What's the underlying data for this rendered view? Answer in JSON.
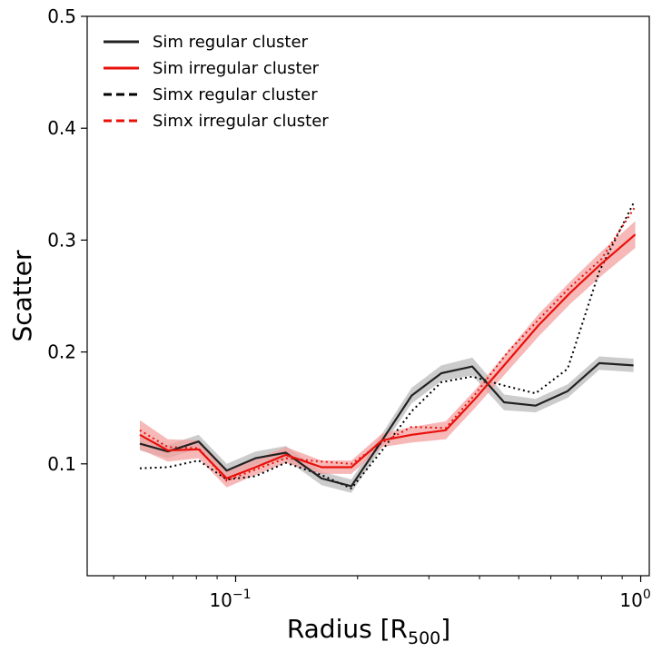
{
  "chart_data": {
    "type": "line",
    "xlabel_main": "Radius [R",
    "xlabel_sub": "500",
    "xlabel_close": "]",
    "ylabel": "Scatter",
    "xscale": "log",
    "xlim": [
      0.043,
      1.05
    ],
    "ylim": [
      0.0,
      0.5
    ],
    "x_ticks": [
      {
        "value": 0.1,
        "base": "10",
        "exp": "−1"
      },
      {
        "value": 1.0,
        "base": "10",
        "exp": "0"
      }
    ],
    "y_ticks": [
      "0.1",
      "0.2",
      "0.3",
      "0.4",
      "0.5"
    ],
    "legend_position": "upper-left",
    "grid": false,
    "series": [
      {
        "name": "Sim regular cluster",
        "color": "#222222",
        "linestyle": "solid",
        "band_color": "#bbbbbb",
        "x": [
          0.058,
          0.068,
          0.081,
          0.095,
          0.112,
          0.133,
          0.163,
          0.193,
          0.23,
          0.272,
          0.322,
          0.384,
          0.46,
          0.55,
          0.66,
          0.79,
          0.96
        ],
        "y": [
          0.118,
          0.111,
          0.12,
          0.094,
          0.105,
          0.11,
          0.087,
          0.08,
          0.121,
          0.161,
          0.181,
          0.187,
          0.155,
          0.152,
          0.165,
          0.19,
          0.188
        ],
        "err": [
          0.006,
          0.006,
          0.006,
          0.006,
          0.006,
          0.006,
          0.006,
          0.006,
          0.006,
          0.007,
          0.007,
          0.008,
          0.007,
          0.006,
          0.006,
          0.006,
          0.006
        ]
      },
      {
        "name": "Sim irregular cluster",
        "color": "#e8100a",
        "linestyle": "solid",
        "band_color": "#f4a0a0",
        "x": [
          0.058,
          0.068,
          0.081,
          0.095,
          0.112,
          0.133,
          0.163,
          0.193,
          0.23,
          0.272,
          0.33,
          0.39,
          0.47,
          0.56,
          0.67,
          0.8,
          0.97
        ],
        "y": [
          0.126,
          0.112,
          0.113,
          0.087,
          0.097,
          0.108,
          0.097,
          0.097,
          0.121,
          0.126,
          0.13,
          0.158,
          0.192,
          0.224,
          0.253,
          0.279,
          0.305
        ],
        "err": [
          0.013,
          0.01,
          0.008,
          0.008,
          0.007,
          0.007,
          0.006,
          0.006,
          0.006,
          0.007,
          0.008,
          0.008,
          0.009,
          0.01,
          0.01,
          0.011,
          0.012
        ]
      },
      {
        "name": "Simx regular cluster",
        "color": "#000000",
        "linestyle": "dotted",
        "x": [
          0.058,
          0.068,
          0.081,
          0.095,
          0.112,
          0.133,
          0.163,
          0.193,
          0.23,
          0.272,
          0.322,
          0.384,
          0.46,
          0.55,
          0.66,
          0.79,
          0.96
        ],
        "y": [
          0.096,
          0.097,
          0.103,
          0.086,
          0.089,
          0.101,
          0.09,
          0.078,
          0.112,
          0.147,
          0.173,
          0.178,
          0.17,
          0.163,
          0.185,
          0.272,
          0.333
        ]
      },
      {
        "name": "Simx irregular cluster",
        "color": "#e8100a",
        "linestyle": "dotted",
        "x": [
          0.058,
          0.068,
          0.081,
          0.095,
          0.112,
          0.133,
          0.163,
          0.193,
          0.23,
          0.272,
          0.33,
          0.39,
          0.47,
          0.56,
          0.67,
          0.8,
          0.97
        ],
        "y": [
          0.13,
          0.115,
          0.114,
          0.085,
          0.095,
          0.105,
          0.102,
          0.1,
          0.119,
          0.133,
          0.132,
          0.162,
          0.2,
          0.229,
          0.258,
          0.283,
          0.33
        ]
      }
    ]
  }
}
